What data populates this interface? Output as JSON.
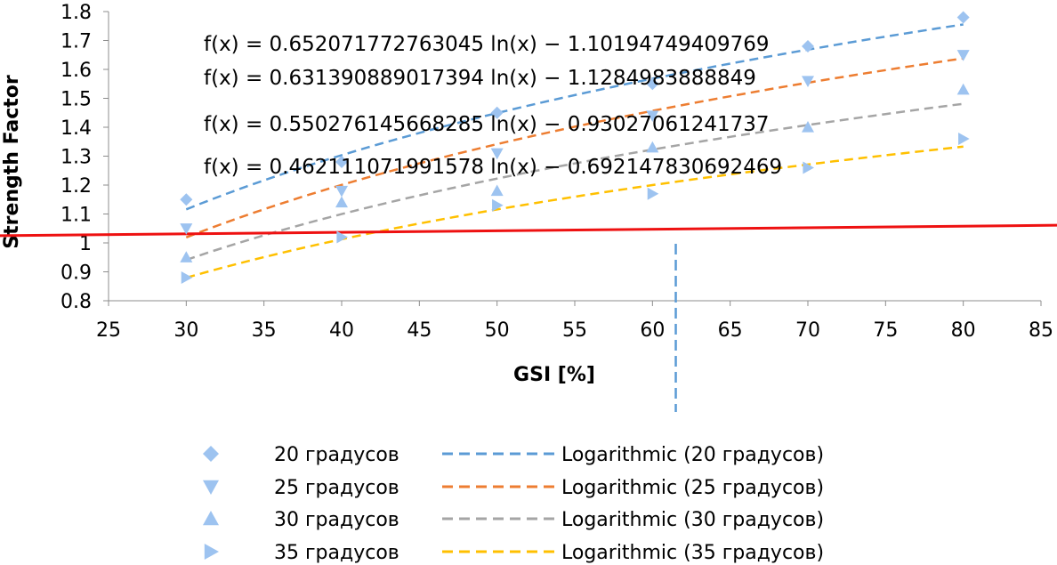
{
  "chart_data": {
    "type": "scatter",
    "xlabel": "GSI [%]",
    "ylabel": "Strength Factor",
    "xlim": [
      25,
      85
    ],
    "ylim": [
      0.8,
      1.8
    ],
    "x_ticks": [
      "25",
      "30",
      "35",
      "40",
      "45",
      "50",
      "55",
      "60",
      "65",
      "70",
      "75",
      "80",
      "85"
    ],
    "y_ticks": [
      "0.8",
      "0.9",
      "1",
      "1.1",
      "1.2",
      "1.3",
      "1.4",
      "1.5",
      "1.6",
      "1.7",
      "1.8"
    ],
    "x": [
      30,
      40,
      50,
      60,
      70,
      80
    ],
    "series": [
      {
        "name": "20 градусов",
        "values": [
          1.15,
          1.28,
          1.45,
          1.55,
          1.68,
          1.78
        ]
      },
      {
        "name": "25 градусов",
        "values": [
          1.05,
          1.18,
          1.31,
          1.44,
          1.56,
          1.65
        ]
      },
      {
        "name": "30 градусов",
        "values": [
          0.95,
          1.14,
          1.18,
          1.33,
          1.4,
          1.53
        ]
      },
      {
        "name": "35 градусов",
        "values": [
          0.88,
          1.02,
          1.13,
          1.17,
          1.26,
          1.36
        ]
      }
    ],
    "trendlines": [
      {
        "name": "Logarithmic (20 градусов)",
        "a": 0.652071772763045,
        "b": -1.10194749409769,
        "color": "#5b9bd5",
        "equation": "f(x) = 0.652071772763045 ln(x) − 1.10194749409769"
      },
      {
        "name": "Logarithmic (25 градусов)",
        "a": 0.631390889017394,
        "b": -1.1284983888849,
        "color": "#ed7d31",
        "equation": "f(x) = 0.631390889017394 ln(x) − 1.1284983888849"
      },
      {
        "name": "Logarithmic (30 градусов)",
        "a": 0.550276145668285,
        "b": -0.93027061241737,
        "color": "#a5a5a5",
        "equation": "f(x) = 0.550276145668285 ln(x) − 0.93027061241737"
      },
      {
        "name": "Logarithmic (35 градусов)",
        "a": 0.462111071991578,
        "b": -0.692147830692469,
        "color": "#ffc000",
        "equation": "f(x) = 0.462111071991578 ln(x) − 0.692147830692469"
      }
    ],
    "reference_line": {
      "color": "#ee1111",
      "y_at_25": 1.028,
      "y_at_85": 1.058
    },
    "vertical_marker": {
      "x": 61.5,
      "color": "#5b9bd5"
    },
    "marker_color": "#9dc3f0",
    "marker_shapes": [
      "diamond",
      "triangle-down",
      "triangle-up",
      "triangle-right"
    ],
    "grid": false,
    "legend_position": "bottom"
  }
}
